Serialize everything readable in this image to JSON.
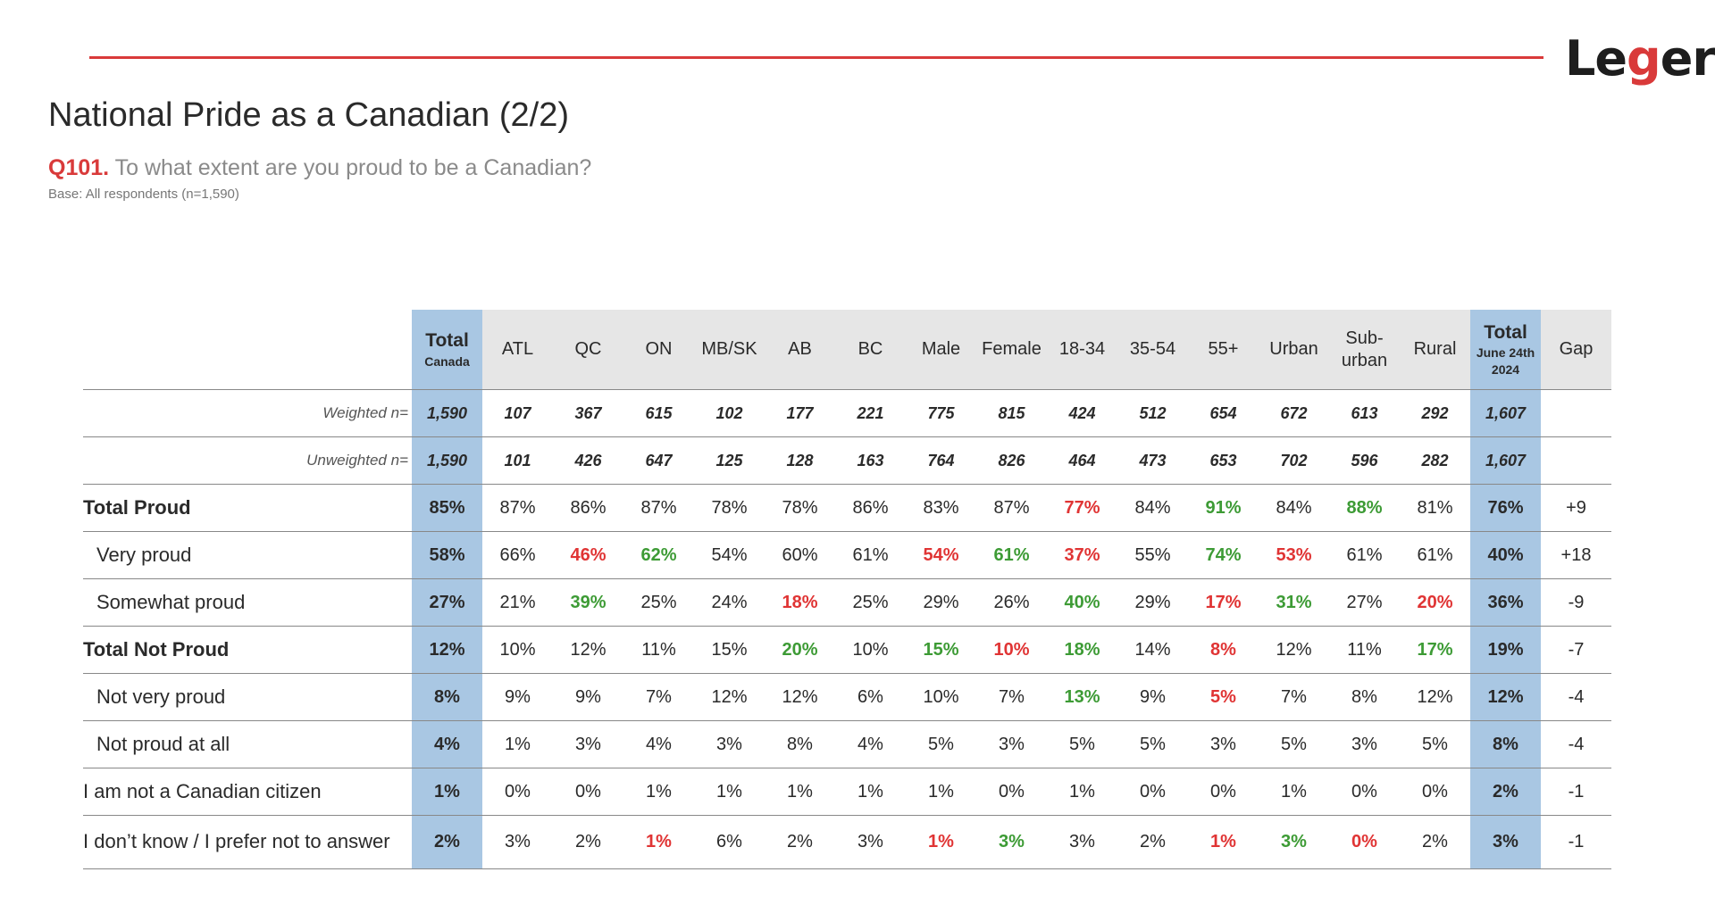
{
  "brand": {
    "logo_pre": "Le",
    "logo_g": "g",
    "logo_post": "er",
    "accent": "#d93a3a",
    "highlight": "#a9c7e3"
  },
  "title": "National Pride as a Canadian (2/2)",
  "question": {
    "number": "Q101.",
    "text": "To what extent are you proud to be a Canadian?",
    "base": "Base: All respondents (n=1,590)"
  },
  "table": {
    "columns": [
      {
        "label": "Total",
        "sub": "Canada"
      },
      {
        "label": "ATL"
      },
      {
        "label": "QC"
      },
      {
        "label": "ON"
      },
      {
        "label": "MB/SK"
      },
      {
        "label": "AB"
      },
      {
        "label": "BC"
      },
      {
        "label": "Male"
      },
      {
        "label": "Female"
      },
      {
        "label": "18-34"
      },
      {
        "label": "35-54"
      },
      {
        "label": "55+"
      },
      {
        "label": "Urban"
      },
      {
        "label": "Sub-",
        "sub": "urban"
      },
      {
        "label": "Rural"
      },
      {
        "label": "Total",
        "sub": "June 24th",
        "sub2": "2024"
      },
      {
        "label": "Gap"
      }
    ],
    "rows": [
      {
        "label": "Weighted n=",
        "values": [
          "1,590",
          "107",
          "367",
          "615",
          "102",
          "177",
          "221",
          "775",
          "815",
          "424",
          "512",
          "654",
          "672",
          "613",
          "292",
          "1,607",
          ""
        ]
      },
      {
        "label": "Unweighted n=",
        "values": [
          "1,590",
          "101",
          "426",
          "647",
          "125",
          "128",
          "163",
          "764",
          "826",
          "464",
          "473",
          "653",
          "702",
          "596",
          "282",
          "1,607",
          ""
        ]
      },
      {
        "label": "Total Proud",
        "values": [
          "85%",
          "87%",
          "86%",
          "87%",
          "78%",
          "78%",
          "86%",
          "83%",
          "87%",
          "77%",
          "84%",
          "91%",
          "84%",
          "88%",
          "81%",
          "76%",
          "+9"
        ],
        "colors": [
          "",
          "",
          "",
          "",
          "",
          "",
          "",
          "",
          "",
          "red",
          "",
          "green",
          "",
          "green",
          "",
          "",
          ""
        ]
      },
      {
        "label": "Very proud",
        "values": [
          "58%",
          "66%",
          "46%",
          "62%",
          "54%",
          "60%",
          "61%",
          "54%",
          "61%",
          "37%",
          "55%",
          "74%",
          "53%",
          "61%",
          "61%",
          "40%",
          "+18"
        ],
        "colors": [
          "",
          "",
          "red",
          "green",
          "",
          "",
          "",
          "red",
          "green",
          "red",
          "",
          "green",
          "red",
          "",
          "",
          "",
          ""
        ]
      },
      {
        "label": "Somewhat proud",
        "values": [
          "27%",
          "21%",
          "39%",
          "25%",
          "24%",
          "18%",
          "25%",
          "29%",
          "26%",
          "40%",
          "29%",
          "17%",
          "31%",
          "27%",
          "20%",
          "36%",
          "-9"
        ],
        "colors": [
          "",
          "",
          "green",
          "",
          "",
          "red",
          "",
          "",
          "",
          "green",
          "",
          "red",
          "green",
          "",
          "red",
          "",
          ""
        ]
      },
      {
        "label": "Total Not Proud",
        "values": [
          "12%",
          "10%",
          "12%",
          "11%",
          "15%",
          "20%",
          "10%",
          "15%",
          "10%",
          "18%",
          "14%",
          "8%",
          "12%",
          "11%",
          "17%",
          "19%",
          "-7"
        ],
        "colors": [
          "",
          "",
          "",
          "",
          "",
          "green",
          "",
          "green",
          "red",
          "green",
          "",
          "red",
          "",
          "",
          "green",
          "",
          ""
        ]
      },
      {
        "label": "Not very proud",
        "values": [
          "8%",
          "9%",
          "9%",
          "7%",
          "12%",
          "12%",
          "6%",
          "10%",
          "7%",
          "13%",
          "9%",
          "5%",
          "7%",
          "8%",
          "12%",
          "12%",
          "-4"
        ],
        "colors": [
          "",
          "",
          "",
          "",
          "",
          "",
          "",
          "",
          "",
          "green",
          "",
          "red",
          "",
          "",
          "",
          "",
          ""
        ]
      },
      {
        "label": "Not proud at all",
        "values": [
          "4%",
          "1%",
          "3%",
          "4%",
          "3%",
          "8%",
          "4%",
          "5%",
          "3%",
          "5%",
          "5%",
          "3%",
          "5%",
          "3%",
          "5%",
          "8%",
          "-4"
        ]
      },
      {
        "label": "I am not a Canadian citizen",
        "values": [
          "1%",
          "0%",
          "0%",
          "1%",
          "1%",
          "1%",
          "1%",
          "1%",
          "0%",
          "1%",
          "0%",
          "0%",
          "1%",
          "0%",
          "0%",
          "2%",
          "-1"
        ]
      },
      {
        "label": "I don’t know / I prefer not to answer",
        "values": [
          "2%",
          "3%",
          "2%",
          "1%",
          "6%",
          "2%",
          "3%",
          "1%",
          "3%",
          "3%",
          "2%",
          "1%",
          "3%",
          "0%",
          "2%",
          "3%",
          "-1"
        ],
        "colors": [
          "",
          "",
          "",
          "red",
          "",
          "",
          "",
          "red",
          "green",
          "",
          "",
          "red",
          "green",
          "red",
          "",
          "",
          ""
        ]
      }
    ]
  }
}
